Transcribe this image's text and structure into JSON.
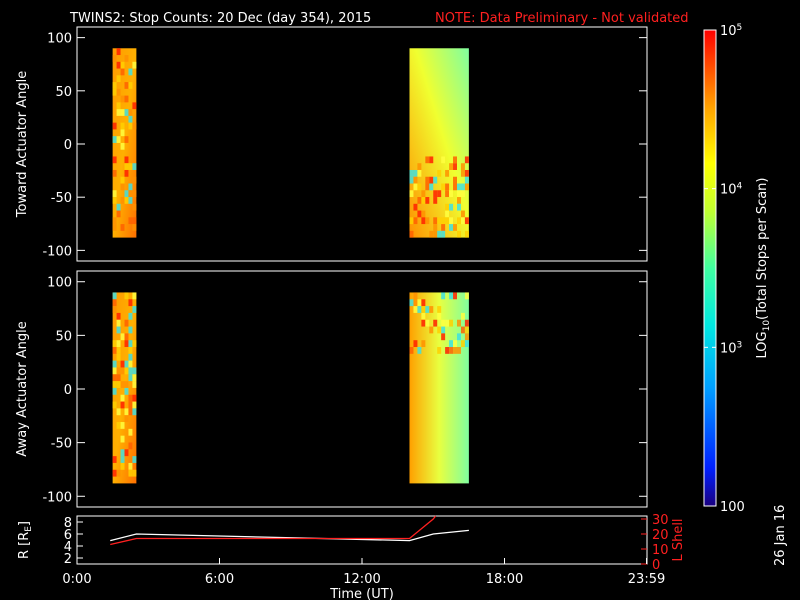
{
  "title": "TWINS2: Stop Counts: 20 Dec (day 354), 2015",
  "note": "NOTE: Data Preliminary - Not validated",
  "date_stamp": "26 Jan 16",
  "colors": {
    "white": "#ffffff",
    "red": "#ff2020",
    "black": "#000000"
  },
  "chart_data": [
    {
      "type": "heatmap",
      "name": "toward",
      "ylabel": "Toward Actuator Angle",
      "ylim": [
        -110,
        110
      ],
      "yticks": [
        100,
        50,
        0,
        -50,
        -100
      ],
      "xlim": [
        0,
        24
      ],
      "blocks": [
        {
          "t_start": 1.5,
          "t_end": 2.5,
          "angle_min": -88,
          "angle_max": 90
        },
        {
          "t_start": 14.0,
          "t_end": 16.5,
          "angle_min": -88,
          "angle_max": 90
        }
      ]
    },
    {
      "type": "heatmap",
      "name": "away",
      "ylabel": "Away Actuator Angle",
      "ylim": [
        -110,
        110
      ],
      "yticks": [
        100,
        50,
        0,
        -50,
        -100
      ],
      "xlim": [
        0,
        24
      ],
      "blocks": [
        {
          "t_start": 1.5,
          "t_end": 2.5,
          "angle_min": -88,
          "angle_max": 90
        },
        {
          "t_start": 14.0,
          "t_end": 16.5,
          "angle_min": -88,
          "angle_max": 90
        }
      ]
    },
    {
      "type": "line",
      "name": "orbit",
      "ylabel_left": "R [R",
      "ylabel_left_sub": "E",
      "ylabel_left_end": "]",
      "ylabel_right": "L Shell",
      "ylim_left": [
        1,
        9
      ],
      "yticks_left": [
        8,
        6,
        4,
        2
      ],
      "ylim_right": [
        0,
        32
      ],
      "yticks_right": [
        30,
        20,
        10,
        0
      ],
      "xlim": [
        0,
        24
      ],
      "xlabel": "Time (UT)",
      "xticks": [
        {
          "t": 0,
          "label": "0:00"
        },
        {
          "t": 6,
          "label": "6:00"
        },
        {
          "t": 12,
          "label": "12:00"
        },
        {
          "t": 18,
          "label": "18:00"
        },
        {
          "t": 23.98,
          "label": "23:59"
        }
      ],
      "series": [
        {
          "axis": "left",
          "color": "#ffffff",
          "x": [
            1.4,
            2.5,
            14.0,
            15.0,
            16.5
          ],
          "y": [
            4.9,
            6.0,
            4.9,
            6.0,
            6.6
          ]
        },
        {
          "axis": "right",
          "color": "#ff2020",
          "x": [
            1.4,
            2.5,
            14.0,
            15.0,
            15.1
          ],
          "y": [
            13,
            17,
            17,
            30,
            32
          ]
        }
      ]
    }
  ],
  "colorbar": {
    "label": "LOG",
    "label_sub": "10",
    "label_end": "(Total Stops per Scan)",
    "range": [
      100,
      100000
    ],
    "ticks": [
      {
        "value": 100000,
        "text": "10",
        "sup": "5"
      },
      {
        "value": 10000,
        "text": "10",
        "sup": "4"
      },
      {
        "value": 1000,
        "text": "10",
        "sup": "3"
      },
      {
        "value": 100,
        "text": "100",
        "sup": ""
      }
    ]
  }
}
